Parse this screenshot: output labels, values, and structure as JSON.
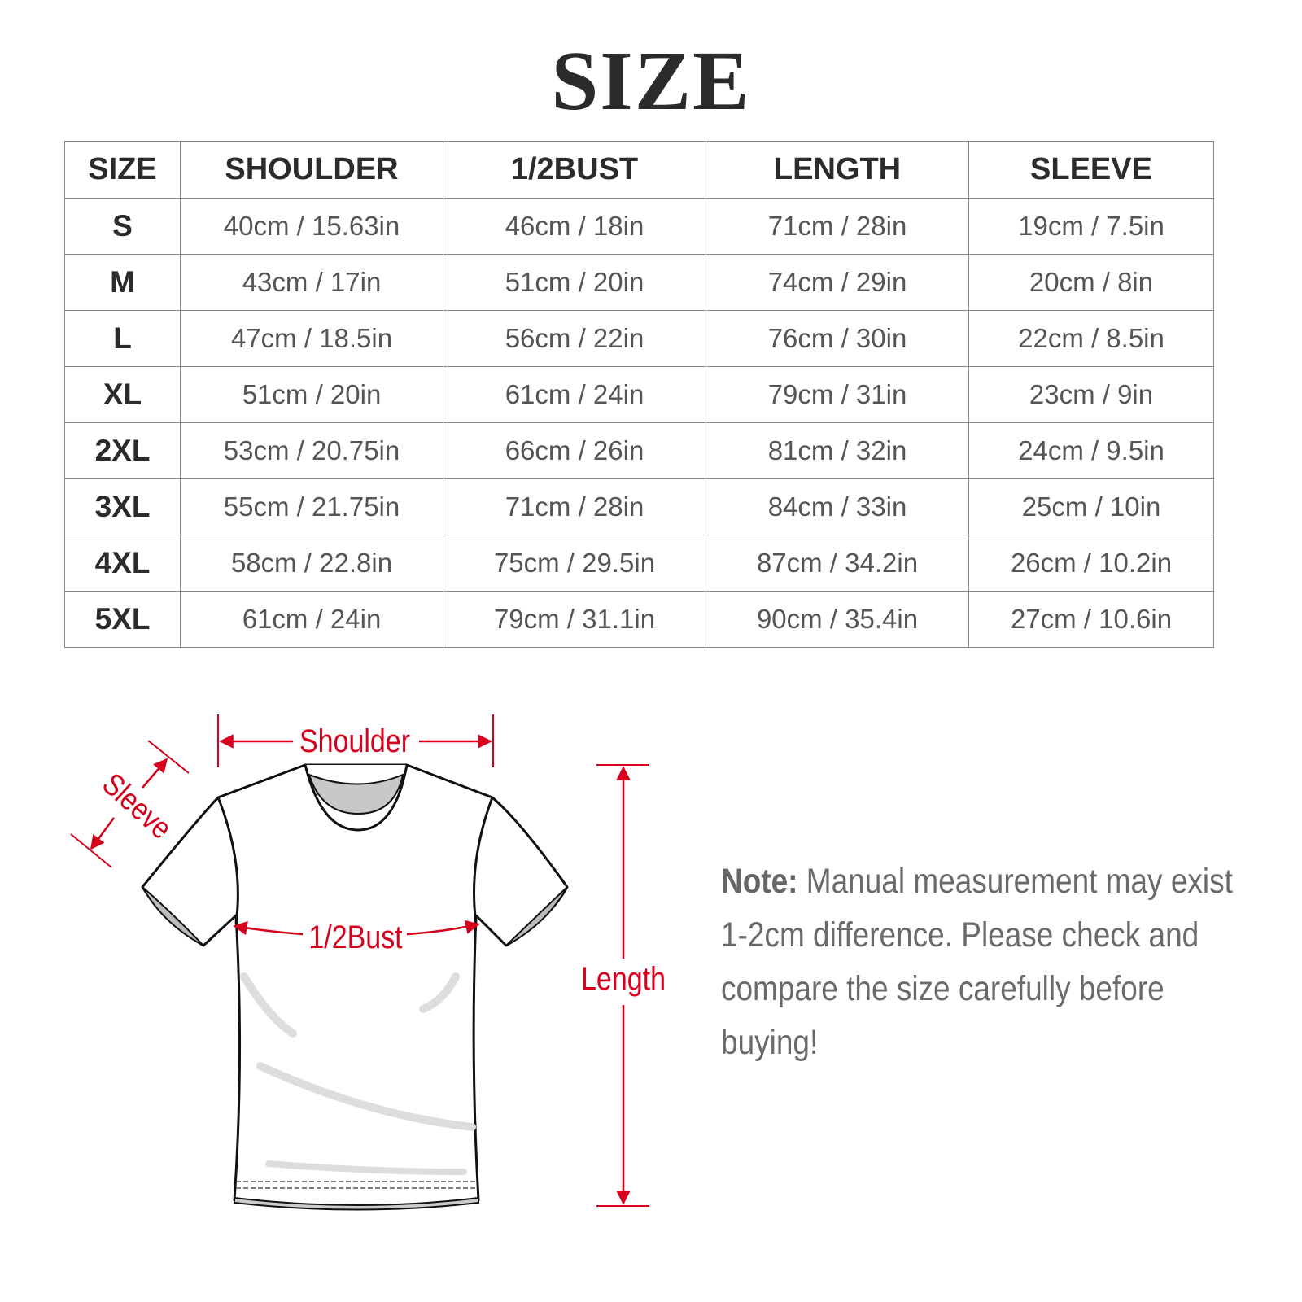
{
  "title": "SIZE",
  "table": {
    "headers": [
      "SIZE",
      "SHOULDER",
      "1/2BUST",
      "LENGTH",
      "SLEEVE"
    ],
    "rows": [
      [
        "S",
        "40cm / 15.63in",
        "46cm / 18in",
        "71cm / 28in",
        "19cm / 7.5in"
      ],
      [
        "M",
        "43cm / 17in",
        "51cm / 20in",
        "74cm / 29in",
        "20cm / 8in"
      ],
      [
        "L",
        "47cm / 18.5in",
        "56cm / 22in",
        "76cm / 30in",
        "22cm / 8.5in"
      ],
      [
        "XL",
        "51cm / 20in",
        "61cm / 24in",
        "79cm / 31in",
        "23cm / 9in"
      ],
      [
        "2XL",
        "53cm / 20.75in",
        "66cm / 26in",
        "81cm / 32in",
        "24cm / 9.5in"
      ],
      [
        "3XL",
        "55cm / 21.75in",
        "71cm / 28in",
        "84cm / 33in",
        "25cm / 10in"
      ],
      [
        "4XL",
        "58cm / 22.8in",
        "75cm / 29.5in",
        "87cm / 34.2in",
        "26cm / 10.2in"
      ],
      [
        "5XL",
        "61cm / 24in",
        "79cm / 31.1in",
        "90cm / 35.4in",
        "27cm / 10.6in"
      ]
    ]
  },
  "diagram": {
    "labels": {
      "shoulder": "Shoulder",
      "sleeve": "Sleeve",
      "bust": "1/2Bust",
      "length": "Length"
    },
    "accent_color": "#d6001c"
  },
  "note": {
    "label": "Note:",
    "text": " Manual measurement may exist 1-2cm difference. Please check and compare the size carefully before buying!"
  }
}
